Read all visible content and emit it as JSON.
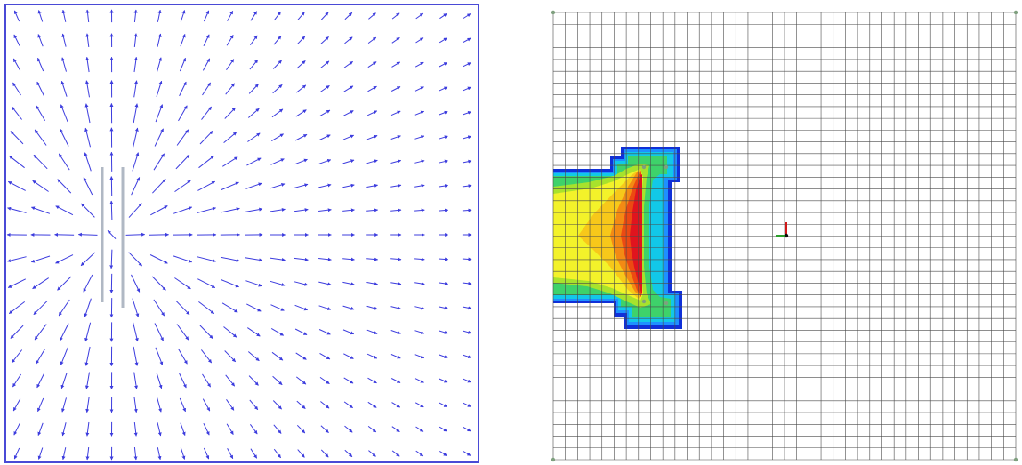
{
  "vector_view": {
    "frame_color": "#4a4ad6",
    "arrow_color": "#3c3cde",
    "plate_color": "#b0b8c4",
    "grid_columns": 20,
    "grid_rows": 19
  },
  "contour_view": {
    "grid_color": "#4a4a4a",
    "node_color": "#7fa07f",
    "mesh_columns": 38,
    "mesh_rows": 38,
    "contour_colors": [
      "#1030d8",
      "#1e90ff",
      "#12c8e8",
      "#3ed26a",
      "#a8e22c",
      "#f3f22a",
      "#f7c81a",
      "#f38a14",
      "#ec4a12",
      "#e0141e"
    ],
    "axis_icon": {
      "x_axis_color": "#2aa02a",
      "y_axis_color": "#d01818",
      "z_axis_color": "#101010"
    }
  }
}
